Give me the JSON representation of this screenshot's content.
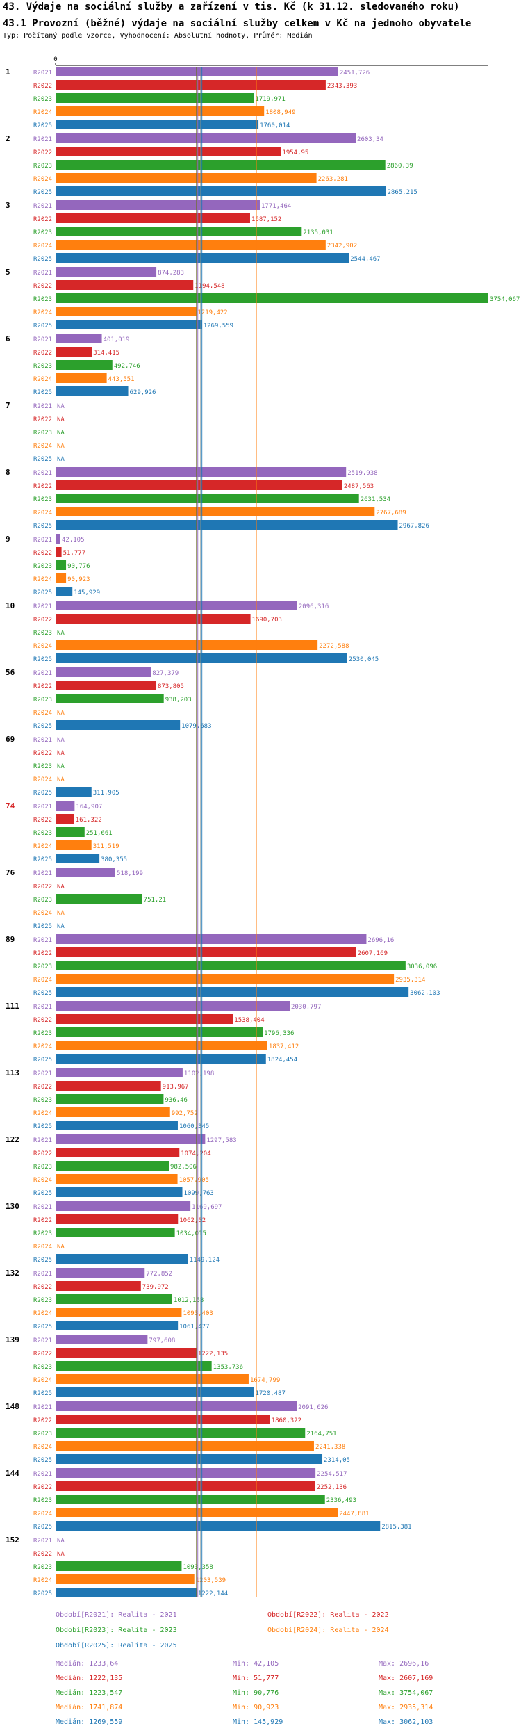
{
  "title": "43. Výdaje na sociální služby a zařízení v tis. Kč (k 31.12. sledovaného roku)",
  "subtitle": "43.1 Provozní (běžné) výdaje na sociální služby celkem v Kč na jednoho obyvatele",
  "type_line": "Typ: Počítaný podle vzorce, Vyhodnocení: Absolutní hodnoty, Průměr: Medián",
  "colors": {
    "R2021": "#9467bd",
    "R2022": "#d62728",
    "R2023": "#2ca02c",
    "R2024": "#ff7f0e",
    "R2025": "#1f77b4",
    "highlight": "#d62728"
  },
  "chart_data": {
    "type": "bar",
    "orientation": "horizontal",
    "x_tick_label": "0",
    "xlim": [
      0,
      3754.067
    ],
    "series_names": [
      "R2021",
      "R2022",
      "R2023",
      "R2024",
      "R2025"
    ],
    "highlight_group": "74",
    "groups": [
      {
        "id": "1",
        "values": [
          2451.726,
          2343.393,
          1719.971,
          1808.949,
          1760.014
        ],
        "labels": [
          "2451,726",
          "2343,393",
          "1719,971",
          "1808,949",
          "1760,014"
        ]
      },
      {
        "id": "2",
        "values": [
          2603.34,
          1954.95,
          2860.39,
          2263.281,
          2865.215
        ],
        "labels": [
          "2603,34",
          "1954,95",
          "2860,39",
          "2263,281",
          "2865,215"
        ]
      },
      {
        "id": "3",
        "values": [
          1771.464,
          1687.152,
          2135.031,
          2342.902,
          2544.467
        ],
        "labels": [
          "1771,464",
          "1687,152",
          "2135,031",
          "2342,902",
          "2544,467"
        ]
      },
      {
        "id": "5",
        "values": [
          874.283,
          1194.548,
          3754.067,
          1219.422,
          1269.559
        ],
        "labels": [
          "874,283",
          "1194,548",
          "3754,067",
          "1219,422",
          "1269,559"
        ]
      },
      {
        "id": "6",
        "values": [
          401.019,
          314.415,
          492.746,
          443.551,
          629.926
        ],
        "labels": [
          "401,019",
          "314,415",
          "492,746",
          "443,551",
          "629,926"
        ]
      },
      {
        "id": "7",
        "values": [
          null,
          null,
          null,
          null,
          null
        ],
        "labels": [
          "NA",
          "NA",
          "NA",
          "NA",
          "NA"
        ]
      },
      {
        "id": "8",
        "values": [
          2519.938,
          2487.563,
          2631.534,
          2767.689,
          2967.826
        ],
        "labels": [
          "2519,938",
          "2487,563",
          "2631,534",
          "2767,689",
          "2967,826"
        ]
      },
      {
        "id": "9",
        "values": [
          42.105,
          51.777,
          90.776,
          90.923,
          145.929
        ],
        "labels": [
          "42,105",
          "51,777",
          "90,776",
          "90,923",
          "145,929"
        ]
      },
      {
        "id": "10",
        "values": [
          2096.316,
          1690.703,
          null,
          2272.588,
          2530.045
        ],
        "labels": [
          "2096,316",
          "1690,703",
          "NA",
          "2272,588",
          "2530,045"
        ]
      },
      {
        "id": "56",
        "values": [
          827.379,
          873.805,
          938.203,
          null,
          1079.683
        ],
        "labels": [
          "827,379",
          "873,805",
          "938,203",
          "NA",
          "1079,683"
        ]
      },
      {
        "id": "69",
        "values": [
          null,
          null,
          null,
          null,
          311.905
        ],
        "labels": [
          "NA",
          "NA",
          "NA",
          "NA",
          "311,905"
        ]
      },
      {
        "id": "74",
        "values": [
          164.907,
          161.322,
          251.661,
          311.519,
          380.355
        ],
        "labels": [
          "164,907",
          "161,322",
          "251,661",
          "311,519",
          "380,355"
        ]
      },
      {
        "id": "76",
        "values": [
          518.199,
          null,
          751.21,
          null,
          null
        ],
        "labels": [
          "518,199",
          "NA",
          "751,21",
          "NA",
          "NA"
        ]
      },
      {
        "id": "89",
        "values": [
          2696.16,
          2607.169,
          3036.096,
          2935.314,
          3062.103
        ],
        "labels": [
          "2696,16",
          "2607,169",
          "3036,096",
          "2935,314",
          "3062,103"
        ]
      },
      {
        "id": "111",
        "values": [
          2030.797,
          1538.404,
          1796.336,
          1837.412,
          1824.454
        ],
        "labels": [
          "2030,797",
          "1538,404",
          "1796,336",
          "1837,412",
          "1824,454"
        ]
      },
      {
        "id": "113",
        "values": [
          1102.198,
          913.967,
          936.46,
          992.752,
          1060.345
        ],
        "labels": [
          "1102,198",
          "913,967",
          "936,46",
          "992,752",
          "1060,345"
        ]
      },
      {
        "id": "122",
        "values": [
          1297.583,
          1074.204,
          982.506,
          1057.905,
          1099.763
        ],
        "labels": [
          "1297,583",
          "1074,204",
          "982,506",
          "1057,905",
          "1099,763"
        ]
      },
      {
        "id": "130",
        "values": [
          1169.697,
          1062.02,
          1034.015,
          null,
          1149.124
        ],
        "labels": [
          "1169,697",
          "1062,02",
          "1034,015",
          "NA",
          "1149,124"
        ]
      },
      {
        "id": "132",
        "values": [
          772.852,
          739.972,
          1012.158,
          1093.403,
          1061.477
        ],
        "labels": [
          "772,852",
          "739,972",
          "1012,158",
          "1093,403",
          "1061,477"
        ]
      },
      {
        "id": "139",
        "values": [
          797.608,
          1222.135,
          1353.736,
          1674.799,
          1720.487
        ],
        "labels": [
          "797,608",
          "1222,135",
          "1353,736",
          "1674,799",
          "1720,487"
        ]
      },
      {
        "id": "148",
        "values": [
          2091.626,
          1860.322,
          2164.751,
          2241.338,
          2314.05
        ],
        "labels": [
          "2091,626",
          "1860,322",
          "2164,751",
          "2241,338",
          "2314,05"
        ]
      },
      {
        "id": "144",
        "values": [
          2254.517,
          2252.136,
          2336.493,
          2447.881,
          2815.381
        ],
        "labels": [
          "2254,517",
          "2252,136",
          "2336,493",
          "2447,881",
          "2815,381"
        ]
      },
      {
        "id": "152",
        "values": [
          null,
          null,
          1093.358,
          1203.539,
          1222.144
        ],
        "labels": [
          "NA",
          "NA",
          "1093,358",
          "1203,539",
          "1222,144"
        ]
      }
    ],
    "reference_lines": [
      {
        "series": "R2021",
        "value": 1233.64
      },
      {
        "series": "R2022",
        "value": 1222.135
      },
      {
        "series": "R2023",
        "value": 1223.547
      },
      {
        "series": "R2024",
        "value": 1741.874
      },
      {
        "series": "R2025",
        "value": 1269.559
      }
    ]
  },
  "legend": {
    "periods": [
      {
        "text": "Období[R2021]: Realita - 2021",
        "series": "R2021"
      },
      {
        "text": "Období[R2022]: Realita - 2022",
        "series": "R2022"
      },
      {
        "text": "Období[R2023]: Realita - 2023",
        "series": "R2023"
      },
      {
        "text": "Období[R2024]: Realita - 2024",
        "series": "R2024"
      },
      {
        "text": "Období[R2025]: Realita - 2025",
        "series": "R2025"
      }
    ],
    "stats": [
      {
        "series": "R2021",
        "median": "Medián: 1233,64",
        "min": "Min: 42,105",
        "max": "Max: 2696,16"
      },
      {
        "series": "R2022",
        "median": "Medián: 1222,135",
        "min": "Min: 51,777",
        "max": "Max: 2607,169"
      },
      {
        "series": "R2023",
        "median": "Medián: 1223,547",
        "min": "Min: 90,776",
        "max": "Max: 3754,067"
      },
      {
        "series": "R2024",
        "median": "Medián: 1741,874",
        "min": "Min: 90,923",
        "max": "Max: 2935,314"
      },
      {
        "series": "R2025",
        "median": "Medián: 1269,559",
        "min": "Min: 145,929",
        "max": "Max: 3062,103"
      }
    ]
  }
}
